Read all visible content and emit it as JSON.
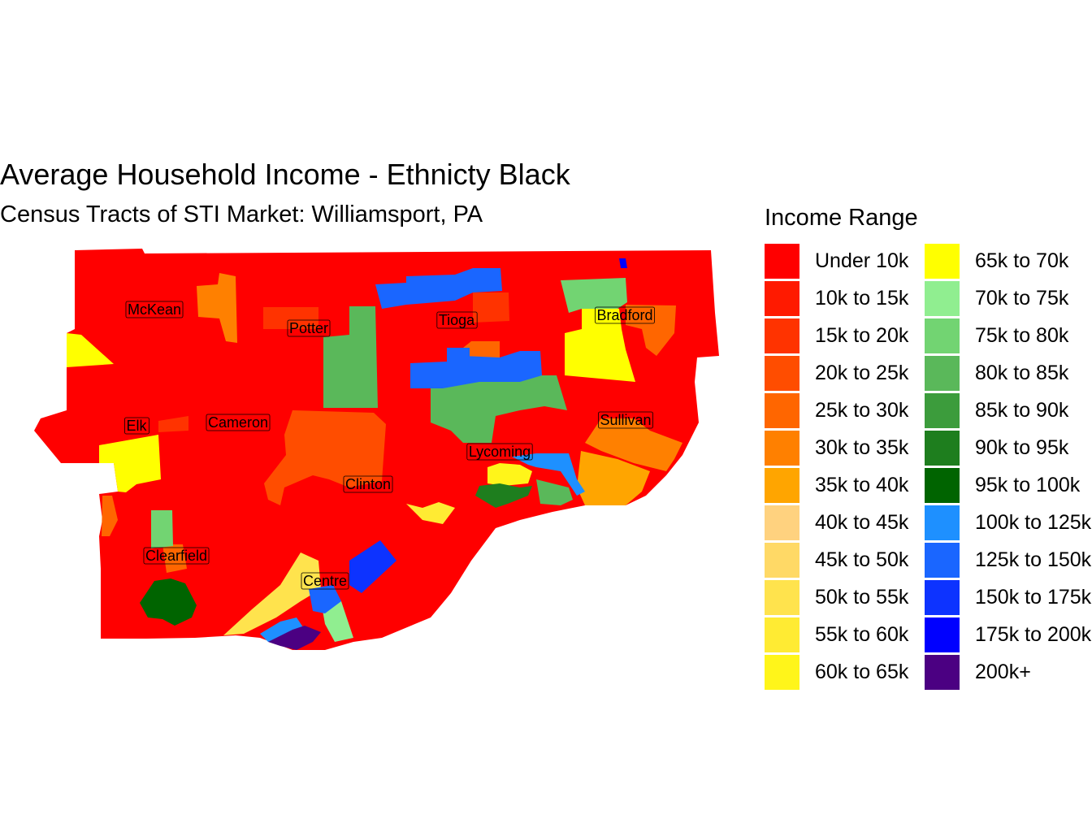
{
  "title": "Average Household Income - Ethnicty Black",
  "subtitle": "Census Tracts of STI Market: Williamsport, PA",
  "legend": {
    "title": "Income Range",
    "items": [
      {
        "label": "Under 10k",
        "color": "#FF0000"
      },
      {
        "label": "10k to 15k",
        "color": "#FF1A00"
      },
      {
        "label": "15k to 20k",
        "color": "#FF3300"
      },
      {
        "label": "20k to 25k",
        "color": "#FF4D00"
      },
      {
        "label": "25k to 30k",
        "color": "#FF6600"
      },
      {
        "label": "30k to 35k",
        "color": "#FF8000"
      },
      {
        "label": "35k to 40k",
        "color": "#FFA500"
      },
      {
        "label": "40k to 45k",
        "color": "#FFD27F"
      },
      {
        "label": "45k to 50k",
        "color": "#FFD966"
      },
      {
        "label": "50k to 55k",
        "color": "#FFE34D"
      },
      {
        "label": "55k to 60k",
        "color": "#FFEB33"
      },
      {
        "label": "60k to 65k",
        "color": "#FFF51A"
      },
      {
        "label": "65k to 70k",
        "color": "#FFFF00"
      },
      {
        "label": "70k to 75k",
        "color": "#90EE90"
      },
      {
        "label": "75k to 80k",
        "color": "#72D472"
      },
      {
        "label": "80k to 85k",
        "color": "#5AB85A"
      },
      {
        "label": "85k to 90k",
        "color": "#3C9C3C"
      },
      {
        "label": "90k to 95k",
        "color": "#1E7E1E"
      },
      {
        "label": "95k to 100k",
        "color": "#006400"
      },
      {
        "label": "100k to 125k",
        "color": "#1E90FF"
      },
      {
        "label": "125k to 150k",
        "color": "#1A66FF"
      },
      {
        "label": "150k to 175k",
        "color": "#0D33FF"
      },
      {
        "label": "175k to 200k",
        "color": "#0000FF"
      },
      {
        "label": "200k+",
        "color": "#4B0082"
      }
    ]
  },
  "counties": [
    {
      "name": "McKean"
    },
    {
      "name": "Potter"
    },
    {
      "name": "Tioga"
    },
    {
      "name": "Bradford"
    },
    {
      "name": "Elk"
    },
    {
      "name": "Cameron"
    },
    {
      "name": "Sullivan"
    },
    {
      "name": "Lycoming"
    },
    {
      "name": "Clinton"
    },
    {
      "name": "Clearfield"
    },
    {
      "name": "Centre"
    }
  ]
}
